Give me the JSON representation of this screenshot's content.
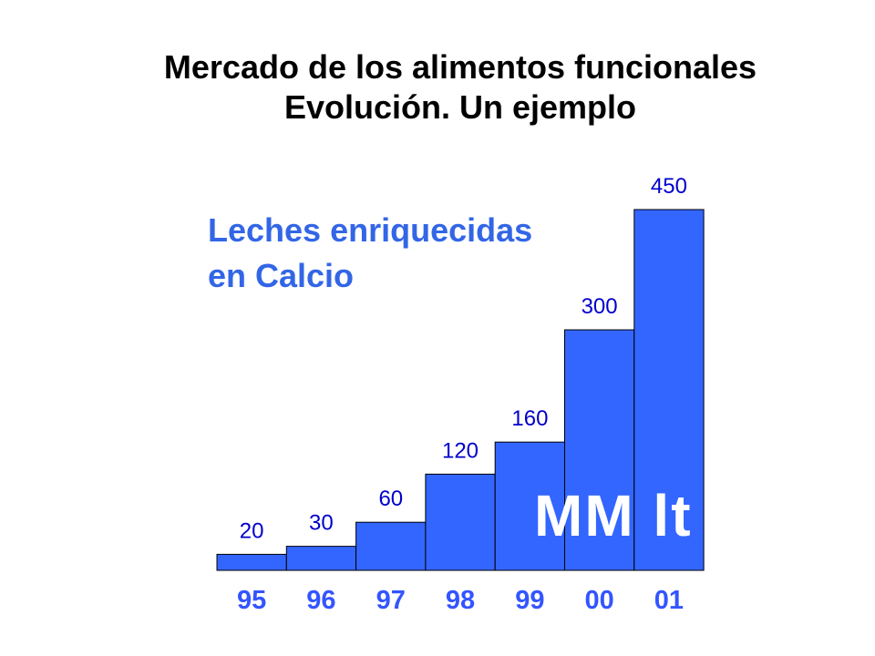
{
  "chart_data": {
    "type": "bar",
    "title": "Mercado de los alimentos funcionales",
    "title_line2": "Evolución. Un ejemplo",
    "subtitle_line1": "Leches enriquecidas",
    "subtitle_line2": "en Calcio",
    "watermark": "MM lt",
    "categories": [
      "95",
      "96",
      "97",
      "98",
      "99",
      "00",
      "01"
    ],
    "values": [
      20,
      30,
      60,
      120,
      160,
      300,
      450
    ],
    "ylim": [
      0,
      480
    ],
    "grid": false,
    "legend": "none",
    "xlabel": "",
    "ylabel": ""
  },
  "colors": {
    "bar": "#3366ff",
    "bar_outline": "#000000",
    "value_label": "#0000cc",
    "category_label": "#3355ff",
    "subtitle": "#3366e6",
    "title": "#000000"
  }
}
